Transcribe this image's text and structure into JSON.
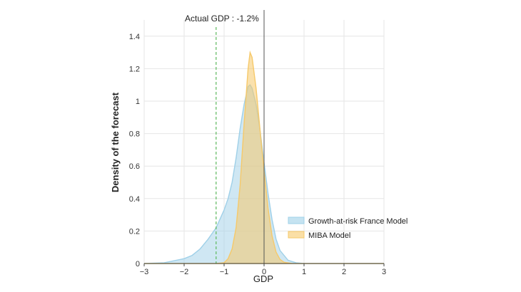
{
  "chart_data": {
    "type": "area",
    "xlabel": "GDP",
    "ylabel": "Density of the forecast",
    "xlim": [
      -3,
      3
    ],
    "ylim": [
      0,
      1.5
    ],
    "xticks": [
      -3,
      -2,
      -1,
      0,
      1,
      2,
      3
    ],
    "xtick_labels": [
      "−3",
      "−2",
      "−1",
      "0",
      "1",
      "2",
      "3"
    ],
    "yticks": [
      0,
      0.2,
      0.4,
      0.6,
      0.8,
      1,
      1.2,
      1.4
    ],
    "ytick_labels": [
      "0",
      "0.2",
      "0.4",
      "0.6",
      "0.8",
      "1",
      "1.2",
      "1.4"
    ],
    "grid": true,
    "legend_position": "lower-right",
    "series": [
      {
        "name": "Growth-at-risk France Model",
        "color": "#9fd0e8",
        "x": [
          -3.0,
          -2.5,
          -2.0,
          -1.8,
          -1.6,
          -1.4,
          -1.2,
          -1.0,
          -0.9,
          -0.8,
          -0.7,
          -0.6,
          -0.5,
          -0.4,
          -0.35,
          -0.3,
          -0.2,
          -0.1,
          0.0,
          0.1,
          0.2,
          0.3,
          0.4,
          0.6,
          0.8,
          1.0,
          1.5,
          3.0
        ],
        "y": [
          0.0,
          0.005,
          0.03,
          0.05,
          0.09,
          0.15,
          0.22,
          0.33,
          0.4,
          0.5,
          0.65,
          0.83,
          0.98,
          1.09,
          1.1,
          1.08,
          0.98,
          0.82,
          0.62,
          0.43,
          0.27,
          0.15,
          0.08,
          0.02,
          0.005,
          0.0,
          0.0,
          0.0
        ]
      },
      {
        "name": "MIBA Model",
        "color": "#f6c96a",
        "x": [
          -3.0,
          -1.2,
          -1.0,
          -0.9,
          -0.8,
          -0.7,
          -0.6,
          -0.5,
          -0.4,
          -0.35,
          -0.3,
          -0.2,
          -0.1,
          0.0,
          0.1,
          0.2,
          0.3,
          0.4,
          0.5,
          0.7,
          1.0,
          3.0
        ],
        "y": [
          0.0,
          0.0,
          0.005,
          0.03,
          0.09,
          0.22,
          0.48,
          0.86,
          1.2,
          1.3,
          1.27,
          1.08,
          0.82,
          0.57,
          0.34,
          0.17,
          0.07,
          0.025,
          0.008,
          0.0,
          0.0,
          0.0
        ]
      }
    ],
    "annotations": [
      {
        "text": "Actual GDP : -1.2%",
        "x": -1.2,
        "color": "#5cb85c",
        "style": "dashed"
      }
    ],
    "reference_line": {
      "x": 0,
      "color": "#555555"
    }
  }
}
